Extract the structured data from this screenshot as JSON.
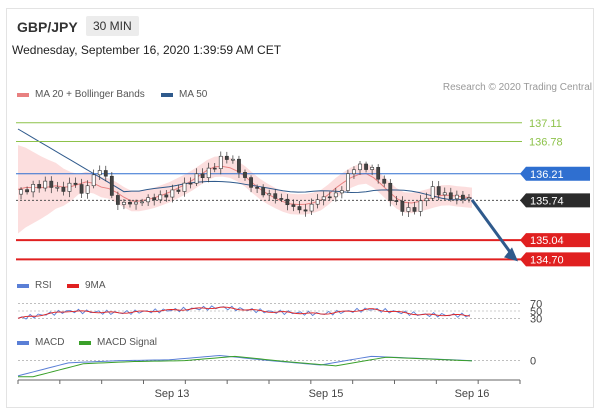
{
  "header": {
    "pair": "GBP/JPY",
    "timeframe": "30 MIN"
  },
  "timestamp": "Wednesday, September 16, 2020 1:39:59 AM CET",
  "credit": "Research © 2020 Trading Central",
  "colors": {
    "ma20": "#e88080",
    "ma50": "#2f5a8c",
    "bands": "#fbd3d3",
    "resistance": "#8dc24a",
    "pivot": "#2f6fd0",
    "support": "#e02020",
    "arrow": "#2f5a8c",
    "rsi": "#5a7fd6",
    "rsi_ma": "#e02020",
    "macd": "#5a7fd6",
    "macd_signal": "#3aa02a"
  },
  "legend": {
    "ma20": "MA 20 + Bollinger Bands",
    "ma50": "MA 50",
    "rsi": "RSI",
    "rsi_ma": "9MA",
    "macd": "MACD",
    "macd_signal": "MACD Signal"
  },
  "chart_data": [
    {
      "type": "line",
      "title": "GBP/JPY",
      "subtitle": "30 MIN",
      "x_ticks": [
        "Sep 13",
        "Sep 15",
        "Sep 16"
      ],
      "ylim": [
        134.6,
        137.3
      ],
      "levels": [
        {
          "value": 137.11,
          "label": "137.11",
          "kind": "resistance"
        },
        {
          "value": 136.78,
          "label": "136.78",
          "kind": "resistance"
        },
        {
          "value": 136.21,
          "label": "136.21",
          "kind": "pivot"
        },
        {
          "value": 135.74,
          "label": "135.74",
          "kind": "last"
        },
        {
          "value": 135.04,
          "label": "135.04",
          "kind": "support"
        },
        {
          "value": 134.7,
          "label": "134.70",
          "kind": "support"
        }
      ],
      "series": [
        {
          "name": "MA 20 + Bollinger Bands"
        },
        {
          "name": "MA 50"
        }
      ],
      "price_path": [
        [
          0,
          135.85
        ],
        [
          2,
          135.95
        ],
        [
          4,
          136.0
        ],
        [
          6,
          136.05
        ],
        [
          8,
          135.92
        ],
        [
          10,
          135.95
        ],
        [
          11,
          136.25
        ],
        [
          12,
          135.75
        ],
        [
          14,
          136.05
        ],
        [
          16,
          136.3
        ],
        [
          18,
          136.1
        ],
        [
          19,
          135.65
        ],
        [
          21,
          135.7
        ],
        [
          23,
          135.68
        ],
        [
          25,
          135.75
        ],
        [
          27,
          135.78
        ],
        [
          29,
          135.82
        ],
        [
          31,
          135.9
        ],
        [
          33,
          136.0
        ],
        [
          35,
          136.15
        ],
        [
          37,
          136.2
        ],
        [
          39,
          136.35
        ],
        [
          41,
          136.55
        ],
        [
          42,
          136.45
        ],
        [
          43,
          136.4
        ],
        [
          45,
          136.1
        ],
        [
          47,
          135.95
        ],
        [
          49,
          135.85
        ],
        [
          51,
          135.8
        ],
        [
          53,
          135.7
        ],
        [
          55,
          135.6
        ],
        [
          57,
          135.55
        ],
        [
          59,
          135.75
        ],
        [
          61,
          135.8
        ],
        [
          63,
          135.85
        ],
        [
          64,
          135.9
        ],
        [
          65,
          136.1
        ],
        [
          66,
          136.3
        ],
        [
          68,
          136.35
        ],
        [
          70,
          136.3
        ],
        [
          72,
          136.1
        ],
        [
          74,
          135.75
        ],
        [
          76,
          135.6
        ],
        [
          78,
          135.55
        ],
        [
          80,
          135.7
        ],
        [
          82,
          135.95
        ],
        [
          84,
          135.85
        ],
        [
          86,
          135.8
        ],
        [
          88,
          135.8
        ],
        [
          90,
          135.75
        ]
      ],
      "forecast_to": 134.7
    },
    {
      "type": "line",
      "series": [
        {
          "name": "RSI"
        },
        {
          "name": "9MA"
        }
      ],
      "y_ticks": [
        70,
        50,
        30
      ],
      "rsi_path": [
        [
          0,
          30
        ],
        [
          10,
          50
        ],
        [
          20,
          45
        ],
        [
          30,
          52
        ],
        [
          40,
          60
        ],
        [
          50,
          48
        ],
        [
          60,
          42
        ],
        [
          70,
          55
        ],
        [
          80,
          40
        ],
        [
          90,
          38
        ]
      ]
    },
    {
      "type": "line",
      "series": [
        {
          "name": "MACD"
        },
        {
          "name": "MACD Signal"
        }
      ],
      "y_ticks": [
        0
      ],
      "macd_path": [
        [
          0,
          -0.35
        ],
        [
          10,
          -0.05
        ],
        [
          20,
          0.0
        ],
        [
          30,
          0.02
        ],
        [
          40,
          0.12
        ],
        [
          50,
          0.0
        ],
        [
          60,
          -0.1
        ],
        [
          70,
          0.1
        ],
        [
          80,
          0.05
        ],
        [
          90,
          0.0
        ]
      ]
    }
  ]
}
